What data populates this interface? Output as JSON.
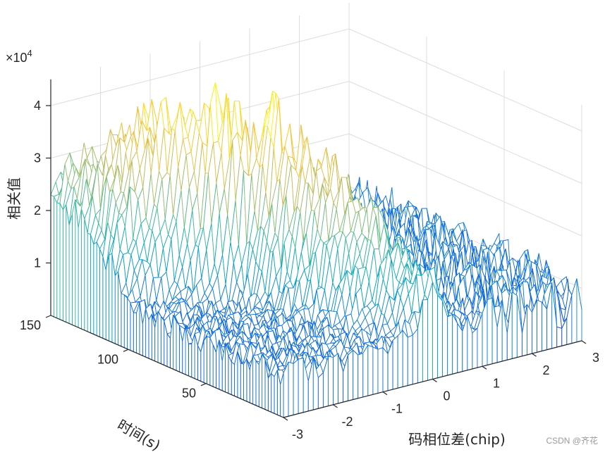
{
  "chart_data": {
    "type": "surface-mesh",
    "xlabel": "码相位差(chip)",
    "ylabel": "时间(s)",
    "zlabel": "相关值",
    "x_ticks": [
      "-3",
      "-2",
      "-1",
      "0",
      "1",
      "2",
      "3"
    ],
    "y_ticks": [
      "50",
      "100",
      "150"
    ],
    "z_ticks": [
      "1",
      "2",
      "3",
      "4"
    ],
    "z_exponent_label": "×10",
    "z_exponent": "4",
    "xlim": [
      -3,
      3
    ],
    "ylim": [
      0,
      150
    ],
    "zlim": [
      0,
      45000
    ],
    "grid": true,
    "colormap": "parula",
    "colormap_stops": [
      "#352a87",
      "#0f5cdd",
      "#1481d6",
      "#06a4ca",
      "#2eb7a4",
      "#87bf77",
      "#d1bb59",
      "#fec832",
      "#f9fb0e"
    ],
    "noise_floor": 8000,
    "ridges": [
      {
        "peak_x": 0.0,
        "peak_time": 0,
        "peak_value": 16000,
        "width_chip": 0.35
      },
      {
        "peak_x": -0.6,
        "peak_time": 45,
        "peak_value": 33000,
        "width_chip": 0.45
      },
      {
        "peak_x": -1.1,
        "peak_time": 75,
        "peak_value": 43000,
        "width_chip": 0.3
      },
      {
        "peak_x": -2.3,
        "peak_time": 110,
        "peak_value": 38000,
        "width_chip": 0.6
      },
      {
        "peak_x": -2.8,
        "peak_time": 150,
        "peak_value": 24000,
        "width_chip": 0.5
      }
    ]
  },
  "watermark": "CSDN @齐花"
}
